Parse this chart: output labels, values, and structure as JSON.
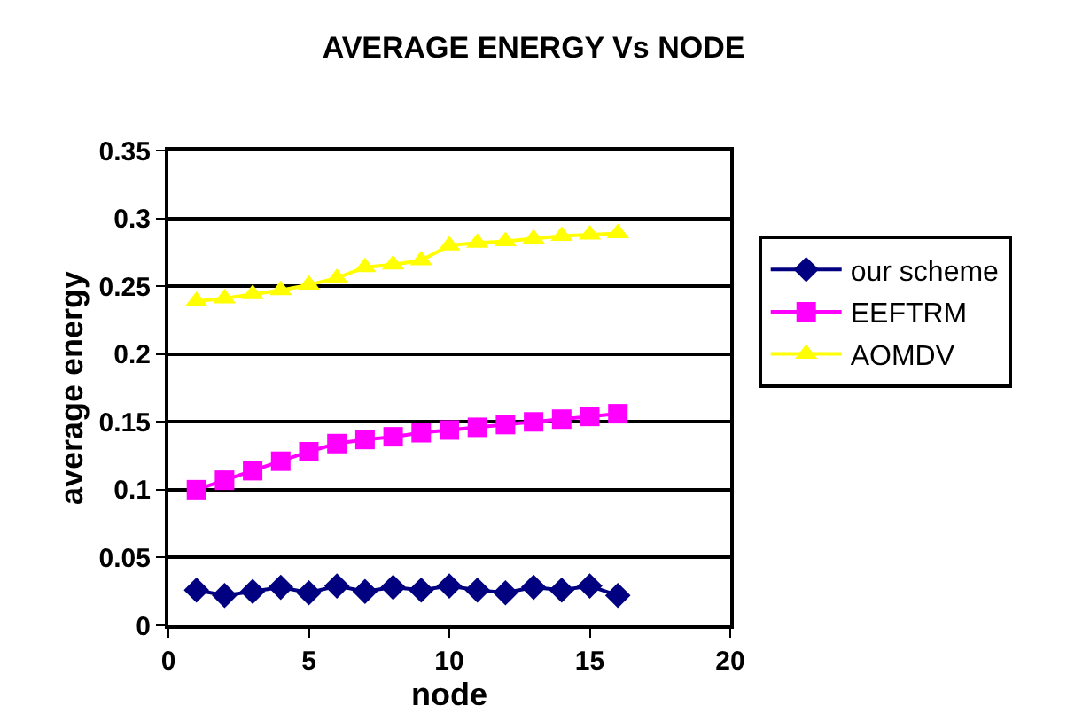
{
  "chart_data": {
    "type": "line",
    "title": "AVERAGE ENERGY Vs NODE",
    "xlabel": "node",
    "ylabel": "average energy",
    "x": [
      1,
      2,
      3,
      4,
      5,
      6,
      7,
      8,
      9,
      10,
      11,
      12,
      13,
      14,
      15,
      16
    ],
    "series": [
      {
        "name": "our scheme",
        "color": "#000080",
        "marker": "diamond",
        "values": [
          0.026,
          0.022,
          0.025,
          0.028,
          0.024,
          0.029,
          0.025,
          0.028,
          0.026,
          0.029,
          0.026,
          0.024,
          0.028,
          0.026,
          0.029,
          0.022
        ]
      },
      {
        "name": "EEFTRM",
        "color": "#ff00ff",
        "marker": "square",
        "values": [
          0.1,
          0.107,
          0.114,
          0.121,
          0.128,
          0.134,
          0.137,
          0.139,
          0.142,
          0.144,
          0.146,
          0.148,
          0.15,
          0.152,
          0.154,
          0.156
        ]
      },
      {
        "name": "AOMDV",
        "color": "#ffff00",
        "marker": "triangle",
        "values": [
          0.239,
          0.241,
          0.244,
          0.247,
          0.251,
          0.256,
          0.264,
          0.266,
          0.269,
          0.28,
          0.282,
          0.283,
          0.285,
          0.287,
          0.288,
          0.289
        ]
      }
    ],
    "xlim": [
      0,
      20
    ],
    "xticks": [
      0,
      5,
      10,
      15,
      20
    ],
    "ylim": [
      0,
      0.35
    ],
    "yticks": [
      0,
      0.05,
      0.1,
      0.15,
      0.2,
      0.25,
      0.3,
      0.35
    ],
    "grid": "y",
    "legend": "right",
    "line_style": "solid"
  }
}
